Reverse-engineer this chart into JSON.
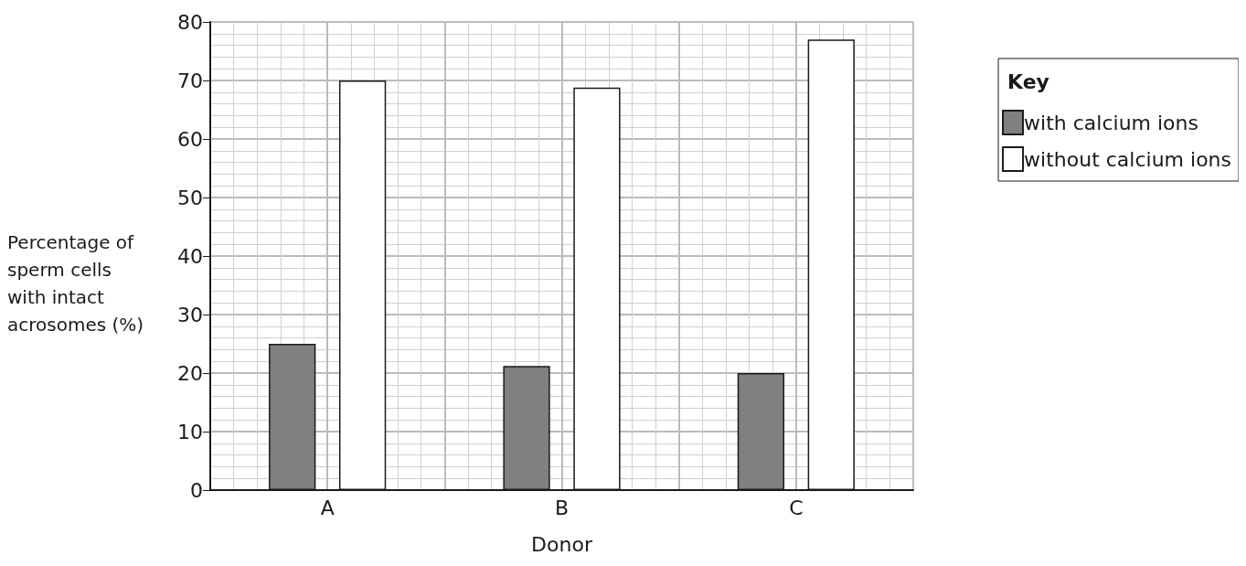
{
  "chart_data": {
    "type": "bar",
    "xlabel": "Donor",
    "ylabel": "Percentage of sperm cells with intact acrosomes (%)",
    "legend_title": "Key",
    "categories": [
      "A",
      "B",
      "C"
    ],
    "series": [
      {
        "name": "with calcium ions",
        "color": "#808080",
        "values": [
          25,
          21.2,
          20
        ]
      },
      {
        "name": "without calcium ions",
        "color": "#ffffff",
        "values": [
          70,
          68.8,
          77
        ]
      }
    ],
    "ylim": [
      0,
      80
    ],
    "yticks": [
      0,
      10,
      20,
      30,
      40,
      50,
      60,
      70,
      80
    ],
    "grid": true,
    "legend": "top right"
  }
}
